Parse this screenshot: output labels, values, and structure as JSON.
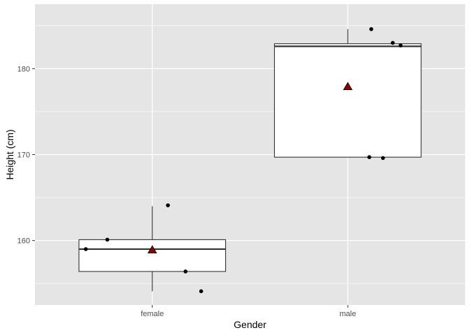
{
  "chart_data": {
    "type": "boxplot",
    "title": "",
    "xlabel": "Gender",
    "ylabel": "Height (cm)",
    "categories": [
      "female",
      "male"
    ],
    "ylim": [
      152.5,
      187.5
    ],
    "yticks": [
      160,
      170,
      180
    ],
    "grid": true,
    "boxes": [
      {
        "category": "female",
        "min": 154.1,
        "q1": 156.4,
        "median": 159.0,
        "q3": 160.1,
        "max": 164.0,
        "mean": 158.9
      },
      {
        "category": "male",
        "min": 169.7,
        "q1": 169.7,
        "median": 182.6,
        "q3": 182.9,
        "max": 184.6,
        "mean": 177.9
      }
    ],
    "points": [
      {
        "category": "female",
        "jitter": -0.34,
        "y": 159.0
      },
      {
        "category": "female",
        "jitter": -0.23,
        "y": 160.1
      },
      {
        "category": "female",
        "jitter": 0.08,
        "y": 164.1
      },
      {
        "category": "female",
        "jitter": 0.17,
        "y": 156.4
      },
      {
        "category": "female",
        "jitter": 0.25,
        "y": 154.1
      },
      {
        "category": "male",
        "jitter": 0.12,
        "y": 184.6
      },
      {
        "category": "male",
        "jitter": 0.23,
        "y": 183.0
      },
      {
        "category": "male",
        "jitter": 0.27,
        "y": 182.7
      },
      {
        "category": "male",
        "jitter": 0.11,
        "y": 169.7
      },
      {
        "category": "male",
        "jitter": 0.18,
        "y": 169.6
      }
    ],
    "colors": {
      "panel": "#e5e5e5",
      "grid_major": "#ffffff",
      "box_fill": "#ffffff",
      "box_line": "#333333",
      "point": "#000000",
      "mean_marker": "#8b0000"
    }
  }
}
